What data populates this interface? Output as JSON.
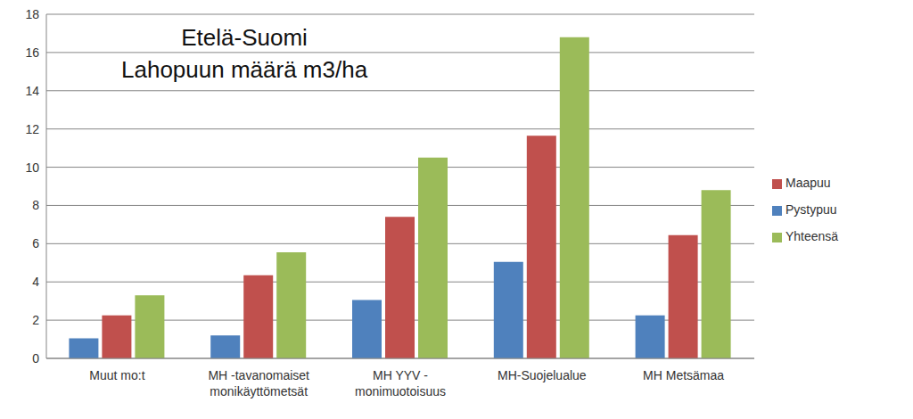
{
  "chart_data": {
    "type": "bar",
    "title": "Etelä-Suomi",
    "subtitle": "Lahopuun määrä m3/ha",
    "categories": [
      "Muut mo:t",
      "MH -tavanomaiset monikäyttömetsät",
      "MH YYV - monimuotoisuus",
      "MH-Suojelualue",
      "MH Metsämaa"
    ],
    "series": [
      {
        "name": "Pystypuu",
        "color": "#4f81bd",
        "values": [
          1.05,
          1.2,
          3.05,
          5.05,
          2.25
        ]
      },
      {
        "name": "Maapuu",
        "color": "#c0504d",
        "values": [
          2.25,
          4.35,
          7.4,
          11.65,
          6.45
        ]
      },
      {
        "name": "Yhteensä",
        "color": "#9bbb59",
        "values": [
          3.3,
          5.55,
          10.5,
          16.8,
          8.8
        ]
      }
    ],
    "ylim": [
      0,
      18
    ],
    "yticks": [
      0,
      2,
      4,
      6,
      8,
      10,
      12,
      14,
      16,
      18
    ],
    "grid": true,
    "legend": "right"
  }
}
